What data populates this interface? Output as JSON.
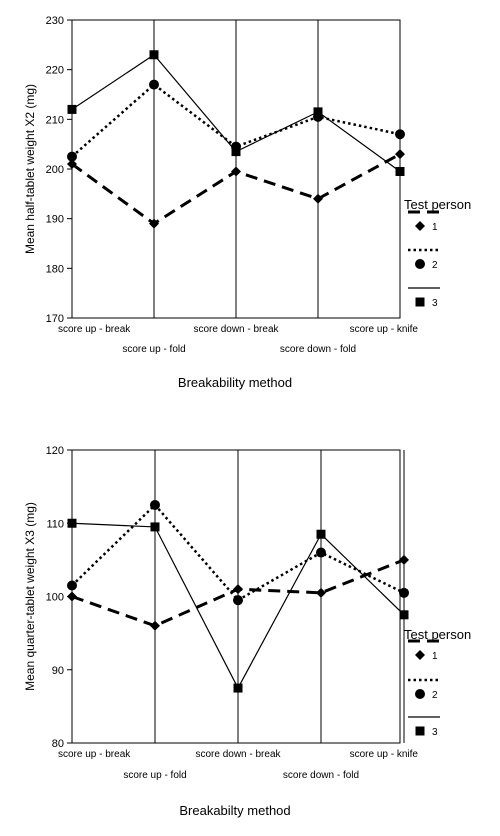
{
  "chart_data": [
    {
      "type": "line",
      "ylabel": "Mean half-tablet weight X2 (mg)",
      "xlabel": "Breakability method",
      "categories": [
        "score up - break",
        "score up - fold",
        "score down - break",
        "score down - fold",
        "score up - knife"
      ],
      "ylim": [
        170,
        230
      ],
      "yticks": [
        170,
        180,
        190,
        200,
        210,
        220,
        230
      ],
      "grid": "vertical lines at categories",
      "legend": {
        "title": "Test person",
        "placement": "right",
        "entries": [
          "1",
          "2",
          "3"
        ]
      },
      "series": [
        {
          "name": "1",
          "style": "dashed",
          "marker": "diamond",
          "values": [
            201,
            189,
            199.5,
            194,
            203
          ]
        },
        {
          "name": "2",
          "style": "dotted",
          "marker": "circle",
          "values": [
            202.5,
            217,
            204.5,
            210.5,
            207
          ]
        },
        {
          "name": "3",
          "style": "solid",
          "marker": "square",
          "values": [
            212,
            223,
            203.5,
            211.5,
            199.5
          ]
        }
      ]
    },
    {
      "type": "line",
      "ylabel": "Mean quarter-tablet weight X3 (mg)",
      "xlabel": "Breakabilty method",
      "categories": [
        "score up - break",
        "score up - fold",
        "score down - break",
        "score down - fold",
        "score up - knife"
      ],
      "ylim": [
        80,
        120
      ],
      "yticks": [
        80,
        90,
        100,
        110,
        120
      ],
      "grid": "vertical lines at categories",
      "legend": {
        "title": "Test person",
        "placement": "right",
        "entries": [
          "1",
          "2",
          "3"
        ]
      },
      "series": [
        {
          "name": "1",
          "style": "dashed",
          "marker": "diamond",
          "values": [
            100,
            96,
            101,
            100.5,
            105
          ]
        },
        {
          "name": "2",
          "style": "dotted",
          "marker": "circle",
          "values": [
            101.5,
            112.5,
            99.5,
            106,
            100.5
          ]
        },
        {
          "name": "3",
          "style": "solid",
          "marker": "square",
          "values": [
            110,
            109.5,
            87.5,
            108.5,
            97.5
          ]
        }
      ]
    }
  ]
}
